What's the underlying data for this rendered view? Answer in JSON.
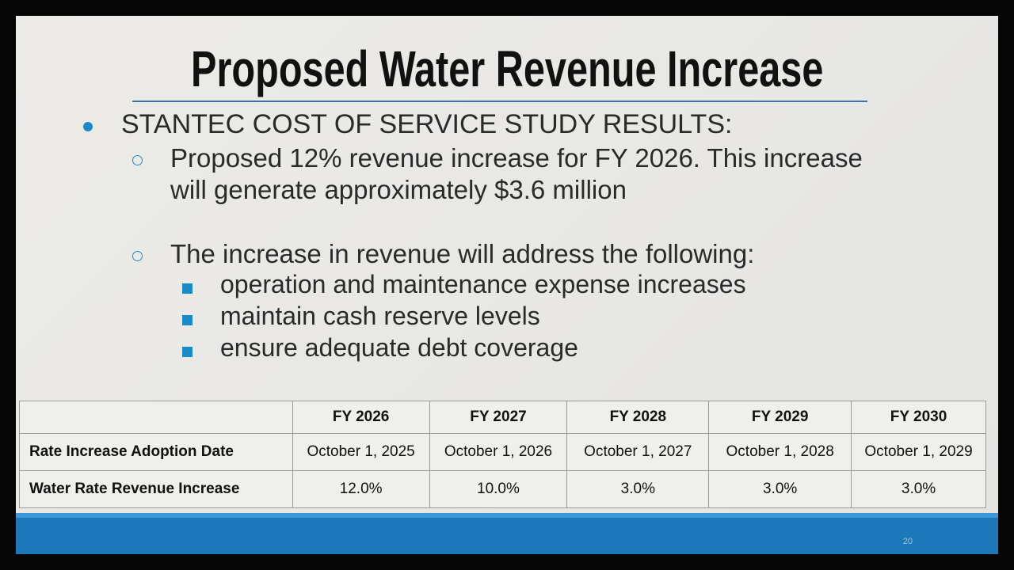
{
  "title": "Proposed Water Revenue Increase",
  "bullets": [
    {
      "text": "STANTEC COST OF SERVICE STUDY RESULTS:",
      "sub": [
        {
          "text": "Proposed 12% revenue increase for FY 2026.  This increase will generate approximately $3.6 million"
        },
        {
          "text": "The increase in revenue will address the following:",
          "items": [
            "operation and maintenance expense increases",
            "maintain cash reserve levels",
            "ensure adequate debt coverage"
          ]
        }
      ]
    }
  ],
  "table": {
    "columns": [
      "FY 2026",
      "FY 2027",
      "FY 2028",
      "FY 2029",
      "FY 2030"
    ],
    "rows": [
      [
        "Rate Increase Adoption Date",
        "October 1, 2025",
        "October 1, 2026",
        "October 1, 2027",
        "October 1, 2028",
        "October 1, 2029"
      ],
      [
        "Water Rate Revenue Increase",
        "12.0%",
        "10.0%",
        "3.0%",
        "3.0%",
        "3.0%"
      ]
    ]
  },
  "page_number": "20"
}
